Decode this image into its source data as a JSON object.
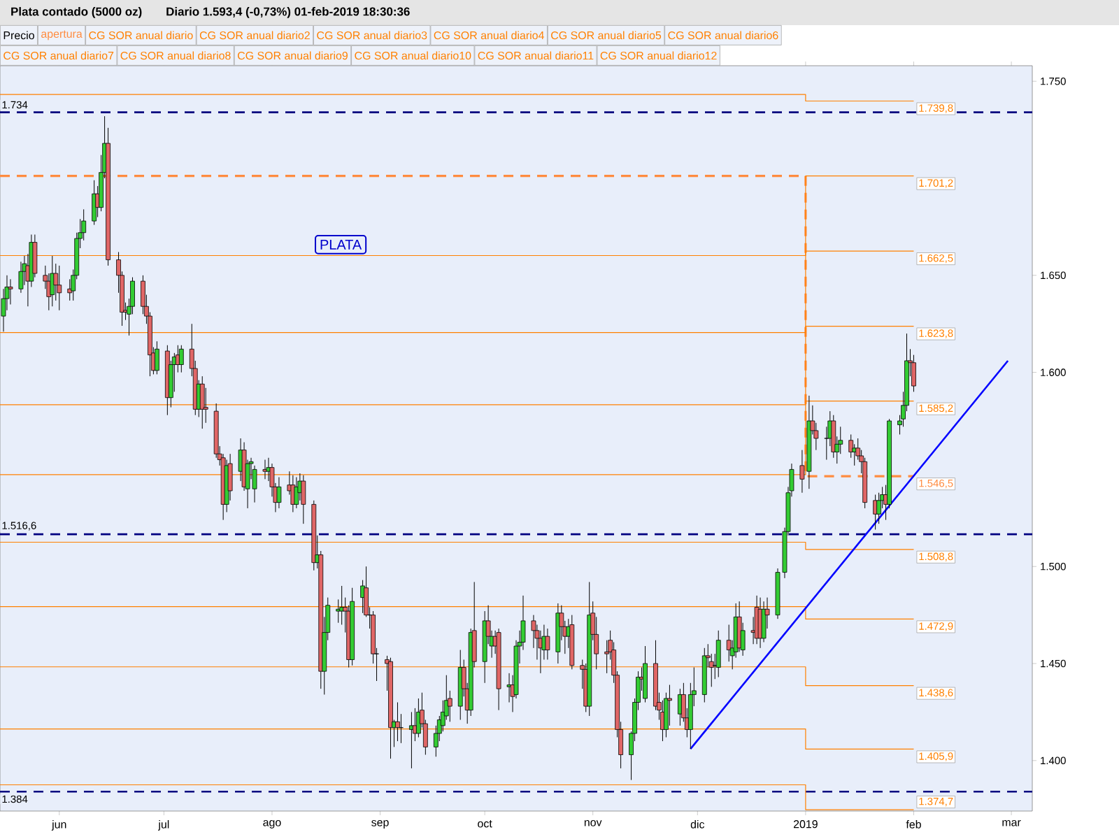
{
  "chart_data": {
    "type": "candlestick",
    "title": "Plata contado (5000 oz)",
    "subtitle": "Diario   1.593,4 (-0,73%)   01-feb-2019 18:30:36",
    "annotations": [
      "PLATA"
    ],
    "xlim": [
      "2018-05-15",
      "2019-03-07"
    ],
    "xticks": [
      {
        "value": "2018-06-01",
        "label": "jun"
      },
      {
        "value": "2018-07-01",
        "label": "jul"
      },
      {
        "value": "2018-08-01",
        "label": "ago"
      },
      {
        "value": "2018-09-01",
        "label": "sep"
      },
      {
        "value": "2018-10-01",
        "label": "oct"
      },
      {
        "value": "2018-11-01",
        "label": "nov"
      },
      {
        "value": "2018-12-01",
        "label": "dic"
      },
      {
        "value": "2019-01-01",
        "label": "2019"
      },
      {
        "value": "2019-02-01",
        "label": "feb"
      },
      {
        "value": "2019-03-01",
        "label": "mar"
      }
    ],
    "ylim": [
      1374,
      1758
    ],
    "yticks": [
      {
        "value": 1400,
        "label": "1.400"
      },
      {
        "value": 1450,
        "label": "1.450"
      },
      {
        "value": 1500,
        "label": "1.500"
      },
      {
        "value": 1600,
        "label": "1.600"
      },
      {
        "value": 1650,
        "label": "1.650"
      },
      {
        "value": 1750,
        "label": "1.750"
      }
    ],
    "legend": "top",
    "ref_lines": [
      {
        "axis": "y",
        "value": 1734,
        "label": "1.734",
        "color": "#000080",
        "line_style": "dashed"
      },
      {
        "axis": "y",
        "value": 1516.6,
        "label": "1.516,6",
        "color": "#000080",
        "line_style": "dashed"
      },
      {
        "axis": "y",
        "value": 1384,
        "label": "1.384",
        "color": "#000080",
        "line_style": "dashed"
      }
    ],
    "series": [
      {
        "name": "Precio",
        "color": "#000000",
        "x": [
          "2018-05-16",
          "2018-05-17",
          "2018-05-18",
          "2018-05-21",
          "2018-05-22",
          "2018-05-23",
          "2018-05-24",
          "2018-05-25",
          "2018-05-28",
          "2018-05-29",
          "2018-05-30",
          "2018-05-31",
          "2018-06-01",
          "2018-06-04",
          "2018-06-05",
          "2018-06-06",
          "2018-06-07",
          "2018-06-08",
          "2018-06-11",
          "2018-06-12",
          "2018-06-13",
          "2018-06-14",
          "2018-06-15",
          "2018-06-18",
          "2018-06-19",
          "2018-06-20",
          "2018-06-21",
          "2018-06-22",
          "2018-06-25",
          "2018-06-26",
          "2018-06-27",
          "2018-06-28",
          "2018-06-29",
          "2018-07-02",
          "2018-07-03",
          "2018-07-04",
          "2018-07-05",
          "2018-07-06",
          "2018-07-09",
          "2018-07-10",
          "2018-07-11",
          "2018-07-12",
          "2018-07-13",
          "2018-07-16",
          "2018-07-17",
          "2018-07-18",
          "2018-07-19",
          "2018-07-20",
          "2018-07-23",
          "2018-07-24",
          "2018-07-25",
          "2018-07-26",
          "2018-07-27",
          "2018-07-30",
          "2018-07-31",
          "2018-08-01",
          "2018-08-02",
          "2018-08-03",
          "2018-08-06",
          "2018-08-07",
          "2018-08-08",
          "2018-08-09",
          "2018-08-10",
          "2018-08-13",
          "2018-08-14",
          "2018-08-15",
          "2018-08-16",
          "2018-08-17",
          "2018-08-20",
          "2018-08-21",
          "2018-08-22",
          "2018-08-23",
          "2018-08-24",
          "2018-08-27",
          "2018-08-28",
          "2018-08-29",
          "2018-08-30",
          "2018-08-31",
          "2018-09-03",
          "2018-09-04",
          "2018-09-05",
          "2018-09-06",
          "2018-09-07",
          "2018-09-10",
          "2018-09-11",
          "2018-09-12",
          "2018-09-13",
          "2018-09-14",
          "2018-09-17",
          "2018-09-18",
          "2018-09-19",
          "2018-09-20",
          "2018-09-21",
          "2018-09-24",
          "2018-09-25",
          "2018-09-26",
          "2018-09-27",
          "2018-09-28",
          "2018-10-01",
          "2018-10-02",
          "2018-10-03",
          "2018-10-04",
          "2018-10-05",
          "2018-10-08",
          "2018-10-09",
          "2018-10-10",
          "2018-10-11",
          "2018-10-12",
          "2018-10-15",
          "2018-10-16",
          "2018-10-17",
          "2018-10-18",
          "2018-10-19",
          "2018-10-22",
          "2018-10-23",
          "2018-10-24",
          "2018-10-25",
          "2018-10-26",
          "2018-10-29",
          "2018-10-30",
          "2018-10-31",
          "2018-11-01",
          "2018-11-02",
          "2018-11-05",
          "2018-11-06",
          "2018-11-07",
          "2018-11-08",
          "2018-11-09",
          "2018-11-12",
          "2018-11-13",
          "2018-11-14",
          "2018-11-15",
          "2018-11-16",
          "2018-11-19",
          "2018-11-20",
          "2018-11-21",
          "2018-11-22",
          "2018-11-23",
          "2018-11-26",
          "2018-11-27",
          "2018-11-28",
          "2018-11-29",
          "2018-11-30",
          "2018-12-03",
          "2018-12-04",
          "2018-12-05",
          "2018-12-06",
          "2018-12-07",
          "2018-12-10",
          "2018-12-11",
          "2018-12-12",
          "2018-12-13",
          "2018-12-14",
          "2018-12-17",
          "2018-12-18",
          "2018-12-19",
          "2018-12-20",
          "2018-12-21",
          "2018-12-24",
          "2018-12-26",
          "2018-12-27",
          "2018-12-28",
          "2018-12-31",
          "2019-01-02",
          "2019-01-03",
          "2019-01-04",
          "2019-01-07",
          "2019-01-08",
          "2019-01-09",
          "2019-01-10",
          "2019-01-11",
          "2019-01-14",
          "2019-01-15",
          "2019-01-16",
          "2019-01-17",
          "2019-01-18",
          "2019-01-21",
          "2019-01-22",
          "2019-01-23",
          "2019-01-24",
          "2019-01-25",
          "2019-01-28",
          "2019-01-29",
          "2019-01-30",
          "2019-01-31",
          "2019-02-01"
        ],
        "ohlc": [
          [
            1629,
            1643,
            1621,
            1638
          ],
          [
            1638,
            1650,
            1632,
            1644
          ],
          [
            1644,
            1648,
            1635,
            1643
          ],
          [
            1643,
            1657,
            1641,
            1652
          ],
          [
            1652,
            1660,
            1645,
            1656
          ],
          [
            1655,
            1661,
            1634,
            1647
          ],
          [
            1647,
            1671,
            1644,
            1667
          ],
          [
            1667,
            1671,
            1649,
            1651
          ],
          [
            1650,
            1655,
            1643,
            1647
          ],
          [
            1647,
            1651,
            1632,
            1639
          ],
          [
            1640,
            1660,
            1634,
            1651
          ],
          [
            1651,
            1656,
            1637,
            1645
          ],
          [
            1645,
            1655,
            1632,
            1641
          ],
          [
            1643,
            1648,
            1637,
            1641
          ],
          [
            1642,
            1653,
            1637,
            1650
          ],
          [
            1650,
            1672,
            1648,
            1669
          ],
          [
            1669,
            1679,
            1664,
            1672
          ],
          [
            1672,
            1684,
            1668,
            1678
          ],
          [
            1678,
            1699,
            1676,
            1692
          ],
          [
            1692,
            1696,
            1680,
            1685
          ],
          [
            1685,
            1712,
            1683,
            1703
          ],
          [
            1703,
            1732,
            1700,
            1718
          ],
          [
            1718,
            1726,
            1655,
            1658
          ],
          [
            1658,
            1662,
            1641,
            1650
          ],
          [
            1650,
            1652,
            1624,
            1631
          ],
          [
            1632,
            1636,
            1627,
            1631
          ],
          [
            1630,
            1638,
            1619,
            1634
          ],
          [
            1634,
            1649,
            1630,
            1647
          ],
          [
            1647,
            1650,
            1630,
            1634
          ],
          [
            1634,
            1640,
            1625,
            1629
          ],
          [
            1629,
            1631,
            1598,
            1609
          ],
          [
            1610,
            1613,
            1599,
            1601
          ],
          [
            1601,
            1616,
            1599,
            1612
          ],
          [
            1611,
            1614,
            1578,
            1587
          ],
          [
            1587,
            1606,
            1582,
            1604
          ],
          [
            1604,
            1610,
            1590,
            1608
          ],
          [
            1609,
            1614,
            1600,
            1604
          ],
          [
            1604,
            1614,
            1600,
            1612
          ],
          [
            1612,
            1625,
            1598,
            1602
          ],
          [
            1602,
            1606,
            1578,
            1581
          ],
          [
            1581,
            1596,
            1577,
            1594
          ],
          [
            1594,
            1598,
            1571,
            1581
          ],
          [
            1582,
            1592,
            1574,
            1581
          ],
          [
            1580,
            1584,
            1556,
            1558
          ],
          [
            1558,
            1562,
            1552,
            1555
          ],
          [
            1556,
            1558,
            1524,
            1532
          ],
          [
            1532,
            1555,
            1528,
            1552
          ],
          [
            1553,
            1558,
            1534,
            1539
          ],
          [
            1549,
            1566,
            1544,
            1560
          ],
          [
            1560,
            1564,
            1539,
            1541
          ],
          [
            1540,
            1555,
            1530,
            1553
          ],
          [
            1553,
            1556,
            1545,
            1554
          ],
          [
            1540,
            1552,
            1533,
            1550
          ],
          [
            1550,
            1555,
            1545,
            1549
          ],
          [
            1549,
            1556,
            1544,
            1551
          ],
          [
            1551,
            1553,
            1536,
            1541
          ],
          [
            1541,
            1543,
            1528,
            1533
          ],
          [
            1533,
            1546,
            1530,
            1541
          ],
          [
            1542,
            1549,
            1537,
            1539
          ],
          [
            1542,
            1547,
            1528,
            1532
          ],
          [
            1532,
            1546,
            1530,
            1541
          ],
          [
            1538,
            1548,
            1534,
            1544
          ],
          [
            1544,
            1547,
            1522,
            1532
          ],
          [
            1532,
            1534,
            1498,
            1502
          ],
          [
            1502,
            1516,
            1499,
            1506
          ],
          [
            1506,
            1508,
            1437,
            1446
          ],
          [
            1446,
            1474,
            1434,
            1466
          ],
          [
            1466,
            1484,
            1462,
            1480
          ],
          [
            1477,
            1483,
            1471,
            1478
          ],
          [
            1477,
            1490,
            1470,
            1479
          ],
          [
            1479,
            1484,
            1466,
            1477
          ],
          [
            1477,
            1480,
            1448,
            1452
          ],
          [
            1452,
            1489,
            1449,
            1482
          ],
          [
            1484,
            1493,
            1476,
            1490
          ],
          [
            1489,
            1500,
            1474,
            1475
          ],
          [
            1475,
            1479,
            1468,
            1475
          ],
          [
            1475,
            1477,
            1450,
            1455
          ],
          [
            1455,
            1458,
            1441,
            1455
          ],
          [
            1452,
            1454,
            1436,
            1450
          ],
          [
            1451,
            1453,
            1401,
            1417
          ],
          [
            1417,
            1421,
            1407,
            1420
          ],
          [
            1420,
            1430,
            1410,
            1417
          ],
          [
            1417,
            1424,
            1409,
            1417
          ],
          [
            1416,
            1425,
            1396,
            1418
          ],
          [
            1418,
            1427,
            1410,
            1414
          ],
          [
            1414,
            1432,
            1412,
            1425
          ],
          [
            1426,
            1435,
            1417,
            1419
          ],
          [
            1419,
            1421,
            1403,
            1407
          ],
          [
            1407,
            1418,
            1402,
            1414
          ],
          [
            1414,
            1423,
            1410,
            1421
          ],
          [
            1418,
            1431,
            1415,
            1425
          ],
          [
            1423,
            1444,
            1421,
            1431
          ],
          [
            1432,
            1436,
            1420,
            1428
          ],
          [
            1428,
            1457,
            1421,
            1448
          ],
          [
            1448,
            1452,
            1433,
            1437
          ],
          [
            1437,
            1440,
            1419,
            1426
          ],
          [
            1426,
            1468,
            1423,
            1466
          ],
          [
            1467,
            1492,
            1448,
            1451
          ],
          [
            1451,
            1477,
            1440,
            1472
          ],
          [
            1472,
            1480,
            1460,
            1464
          ],
          [
            1459,
            1467,
            1453,
            1464
          ],
          [
            1464,
            1467,
            1455,
            1459
          ],
          [
            1466,
            1468,
            1426,
            1437
          ],
          [
            1438,
            1445,
            1430,
            1439
          ],
          [
            1439,
            1444,
            1425,
            1433
          ],
          [
            1434,
            1462,
            1432,
            1459
          ],
          [
            1459,
            1467,
            1450,
            1461
          ],
          [
            1461,
            1485,
            1457,
            1472
          ],
          [
            1472,
            1475,
            1458,
            1467
          ],
          [
            1467,
            1470,
            1452,
            1463
          ],
          [
            1463,
            1467,
            1445,
            1458
          ],
          [
            1457,
            1470,
            1452,
            1464
          ],
          [
            1464,
            1468,
            1452,
            1457
          ],
          [
            1456,
            1481,
            1450,
            1476
          ],
          [
            1476,
            1480,
            1462,
            1469
          ],
          [
            1469,
            1472,
            1455,
            1464
          ],
          [
            1464,
            1473,
            1458,
            1469
          ],
          [
            1470,
            1475,
            1447,
            1449
          ],
          [
            1449,
            1452,
            1437,
            1447
          ],
          [
            1447,
            1450,
            1425,
            1428
          ],
          [
            1428,
            1492,
            1423,
            1475
          ],
          [
            1476,
            1482,
            1462,
            1465
          ],
          [
            1465,
            1474,
            1447,
            1455
          ],
          [
            1456,
            1462,
            1445,
            1455
          ],
          [
            1462,
            1467,
            1452,
            1456
          ],
          [
            1457,
            1461,
            1440,
            1444
          ],
          [
            1444,
            1446,
            1412,
            1416
          ],
          [
            1416,
            1420,
            1396,
            1403
          ],
          [
            1403,
            1415,
            1390,
            1414
          ],
          [
            1414,
            1432,
            1410,
            1430
          ],
          [
            1430,
            1446,
            1426,
            1443
          ],
          [
            1443,
            1448,
            1436,
            1442
          ],
          [
            1432,
            1459,
            1430,
            1450
          ],
          [
            1450,
            1462,
            1426,
            1428
          ],
          [
            1430,
            1435,
            1421,
            1426
          ],
          [
            1425,
            1431,
            1410,
            1416
          ],
          [
            1416,
            1435,
            1412,
            1432
          ],
          [
            1432,
            1439,
            1418,
            1431
          ],
          [
            1424,
            1437,
            1418,
            1434
          ],
          [
            1434,
            1440,
            1420,
            1422
          ],
          [
            1422,
            1427,
            1412,
            1416
          ],
          [
            1416,
            1440,
            1406,
            1434
          ],
          [
            1434,
            1448,
            1428,
            1436
          ],
          [
            1434,
            1458,
            1430,
            1454
          ],
          [
            1454,
            1460,
            1448,
            1453
          ],
          [
            1451,
            1455,
            1438,
            1448
          ],
          [
            1449,
            1455,
            1442,
            1449
          ],
          [
            1448,
            1467,
            1443,
            1462
          ],
          [
            1462,
            1470,
            1451,
            1457
          ],
          [
            1454,
            1462,
            1447,
            1458
          ],
          [
            1456,
            1481,
            1453,
            1474
          ],
          [
            1474,
            1482,
            1456,
            1458
          ],
          [
            1457,
            1471,
            1454,
            1467
          ],
          [
            1467,
            1474,
            1460,
            1466
          ],
          [
            1479,
            1485,
            1460,
            1463
          ],
          [
            1478,
            1484,
            1458,
            1463
          ],
          [
            1463,
            1482,
            1461,
            1478
          ],
          [
            1478,
            1484,
            1468,
            1475
          ],
          [
            1475,
            1499,
            1473,
            1497
          ],
          [
            1497,
            1520,
            1494,
            1518
          ],
          [
            1518,
            1541,
            1516,
            1538
          ],
          [
            1539,
            1553,
            1536,
            1550
          ],
          [
            1552,
            1560,
            1538,
            1545
          ],
          [
            1549,
            1588,
            1540,
            1575
          ],
          [
            1575,
            1583,
            1568,
            1570
          ],
          [
            1570,
            1574,
            1560,
            1566
          ],
          [
            1566,
            1572,
            1555,
            1566
          ],
          [
            1566,
            1580,
            1562,
            1575
          ],
          [
            1575,
            1578,
            1556,
            1559
          ],
          [
            1559,
            1567,
            1553,
            1563
          ],
          [
            1563,
            1572,
            1558,
            1565
          ],
          [
            1565,
            1568,
            1556,
            1559
          ],
          [
            1559,
            1563,
            1552,
            1561
          ],
          [
            1561,
            1566,
            1555,
            1557
          ],
          [
            1557,
            1560,
            1548,
            1554
          ],
          [
            1554,
            1556,
            1530,
            1533
          ],
          [
            1534,
            1537,
            1519,
            1527
          ],
          [
            1527,
            1538,
            1522,
            1534
          ],
          [
            1534,
            1541,
            1530,
            1537
          ],
          [
            1537,
            1542,
            1524,
            1532
          ],
          [
            1532,
            1576,
            1530,
            1575
          ],
          [
            1573,
            1578,
            1568,
            1575
          ],
          [
            1576,
            1590,
            1572,
            1583
          ],
          [
            1583,
            1620,
            1580,
            1606
          ],
          [
            1606,
            1612,
            1598,
            1605
          ],
          [
            1605,
            1609,
            1590,
            1593
          ]
        ]
      },
      {
        "name": "apertura",
        "type": "step",
        "color": "#ff8c40",
        "line_style": "dashed",
        "x": [
          "2018-05-15",
          "2019-01-01",
          "2019-02-01"
        ],
        "values": [
          1701.2,
          1546.5,
          1546.5
        ],
        "value_labels": [
          null,
          null,
          "1.546,5"
        ]
      },
      {
        "name": "CG SOR anual diario",
        "type": "step",
        "color": "#ff8000",
        "x": [
          "2018-05-15",
          "2019-01-01",
          "2019-02-01"
        ],
        "values": [
          1743.2,
          1739.8,
          1739.8
        ],
        "value_labels": [
          null,
          null,
          "1.739,8"
        ]
      },
      {
        "name": "CG SOR anual diario2",
        "type": "step",
        "color": "#ff8000",
        "x": [
          "2018-05-15",
          "2019-01-01",
          "2019-02-01"
        ],
        "values": [
          1660.2,
          1701.2,
          1701.2
        ],
        "value_labels": [
          null,
          null,
          "1.701,2"
        ]
      },
      {
        "name": "CG SOR anual diario3",
        "type": "step",
        "color": "#ff8000",
        "x": [
          "2018-05-15",
          "2019-01-01",
          "2019-02-01"
        ],
        "values": [
          1620.5,
          1662.5,
          1662.5
        ],
        "value_labels": [
          null,
          null,
          "1.662,5"
        ]
      },
      {
        "name": "CG SOR anual diario4",
        "type": "step",
        "color": "#ff8000",
        "x": [
          "2018-05-15",
          "2019-01-01",
          "2019-02-01"
        ],
        "values": [
          1583.3,
          1623.8,
          1623.8
        ],
        "value_labels": [
          null,
          null,
          "1.623,8"
        ]
      },
      {
        "name": "CG SOR anual diario5",
        "type": "step",
        "color": "#ff8000",
        "x": [
          "2018-05-15",
          "2019-01-01",
          "2019-02-01"
        ],
        "values": [
          1547.3,
          1585.2,
          1585.2
        ],
        "value_labels": [
          null,
          null,
          "1.585,2"
        ]
      },
      {
        "name": "CG SOR anual diario6",
        "type": "step",
        "color": "#ff8000",
        "x": [
          "2018-05-15",
          "2019-01-01",
          "2019-02-01"
        ],
        "values": [
          1512.5,
          1508.8,
          1508.8
        ],
        "value_labels": [
          null,
          null,
          "1.508,8"
        ]
      },
      {
        "name": "CG SOR anual diario7",
        "type": "step",
        "color": "#ff8000",
        "x": [
          "2018-05-15",
          "2019-01-01",
          "2019-02-01"
        ],
        "values": [
          1479.3,
          1472.9,
          1472.9
        ],
        "value_labels": [
          null,
          null,
          "1.472,9"
        ]
      },
      {
        "name": "CG SOR anual diario8",
        "type": "step",
        "color": "#ff8000",
        "x": [
          "2018-05-15",
          "2019-01-01",
          "2019-02-01"
        ],
        "values": [
          1448.3,
          1438.6,
          1438.6
        ],
        "value_labels": [
          null,
          null,
          "1.438,6"
        ]
      },
      {
        "name": "CG SOR anual diario9",
        "type": "step",
        "color": "#ff8000",
        "x": [
          "2018-05-15",
          "2019-01-01",
          "2019-02-01"
        ],
        "values": [
          1416.3,
          1405.9,
          1405.9
        ],
        "value_labels": [
          null,
          null,
          "1.405,9"
        ]
      },
      {
        "name": "CG SOR anual diario10",
        "type": "step",
        "color": "#ff8000",
        "x": [
          "2018-05-15",
          "2019-01-01",
          "2019-02-01"
        ],
        "values": [
          1387.5,
          1374.7,
          1374.7
        ],
        "value_labels": [
          null,
          null,
          "1.374,7"
        ]
      },
      {
        "name": "CG SOR anual diario11",
        "type": "step",
        "color": "#ff8000"
      },
      {
        "name": "CG SOR anual diario12",
        "type": "step",
        "color": "#ff8000"
      },
      {
        "type": "line",
        "color": "#0000ff",
        "x": [
          "2018-11-29",
          "2019-02-28"
        ],
        "values": [
          1406,
          1606
        ]
      }
    ]
  }
}
